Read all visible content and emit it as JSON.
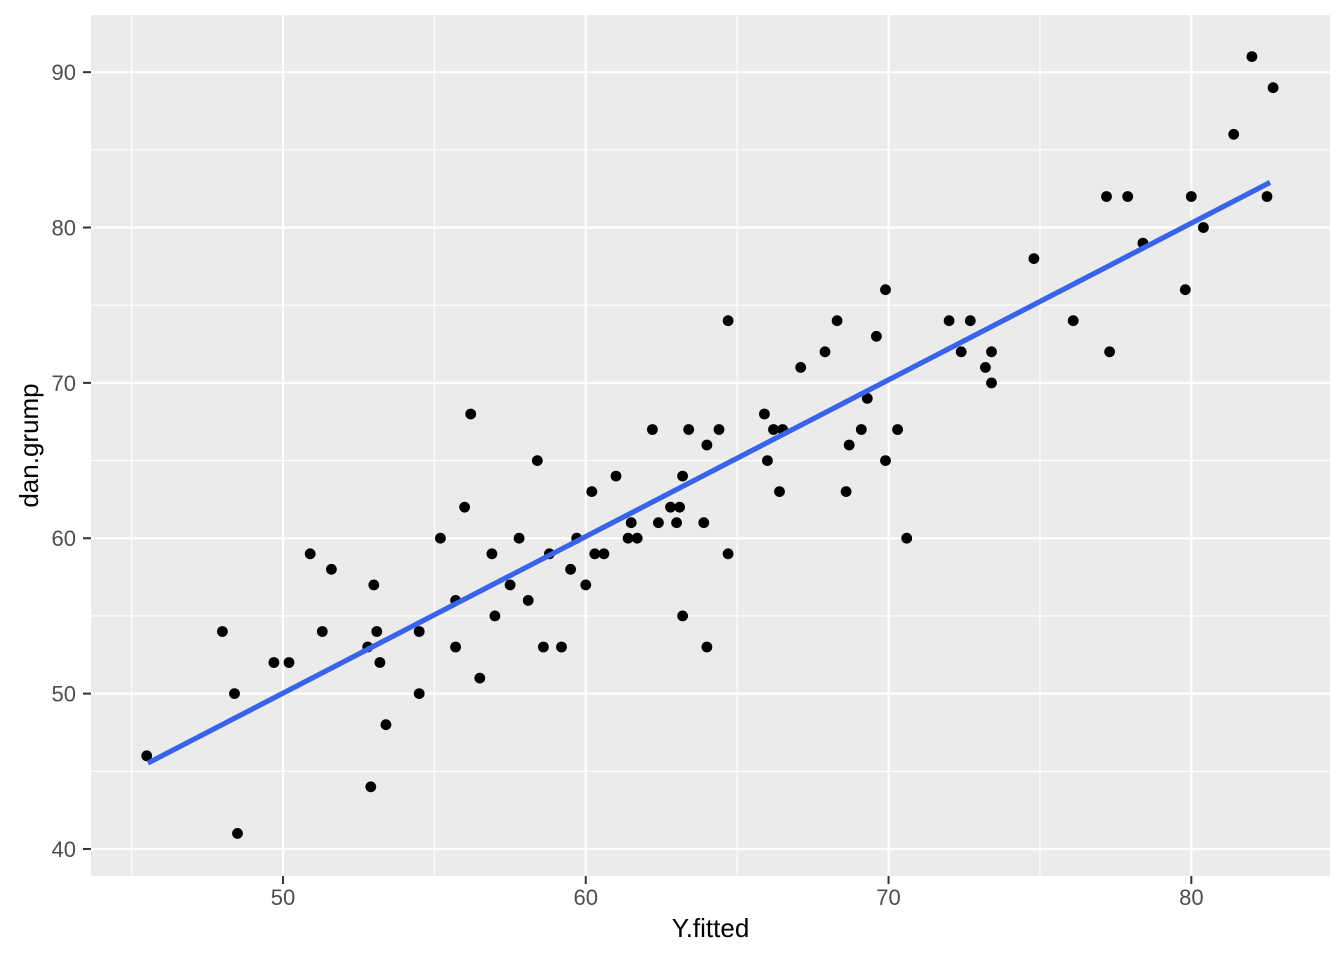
{
  "chart_data": {
    "type": "scatter",
    "title": "",
    "xlabel": "Y.fitted",
    "ylabel": "dan.grump",
    "x_ticks": [
      50,
      60,
      70,
      80
    ],
    "y_ticks": [
      40,
      50,
      60,
      70,
      80,
      90
    ],
    "x_minor": [
      45,
      55,
      65,
      75
    ],
    "y_minor": [
      45,
      55,
      65,
      75,
      85
    ],
    "xlim": [
      43.66,
      84.58
    ],
    "ylim": [
      38.26,
      93.68
    ],
    "grid": true,
    "legend": null,
    "points": [
      [
        45.5,
        46
      ],
      [
        48.0,
        54
      ],
      [
        48.4,
        50
      ],
      [
        48.5,
        41
      ],
      [
        49.7,
        52
      ],
      [
        50.2,
        52
      ],
      [
        50.9,
        59
      ],
      [
        51.3,
        54
      ],
      [
        51.6,
        58
      ],
      [
        52.8,
        53
      ],
      [
        52.9,
        44
      ],
      [
        53.0,
        57
      ],
      [
        53.1,
        54
      ],
      [
        53.2,
        52
      ],
      [
        53.4,
        48
      ],
      [
        54.5,
        54
      ],
      [
        54.5,
        50
      ],
      [
        55.2,
        60
      ],
      [
        55.7,
        56
      ],
      [
        55.7,
        53
      ],
      [
        56.0,
        62
      ],
      [
        56.2,
        68
      ],
      [
        56.5,
        51
      ],
      [
        56.9,
        59
      ],
      [
        57.0,
        55
      ],
      [
        57.5,
        57
      ],
      [
        57.8,
        60
      ],
      [
        58.1,
        56
      ],
      [
        58.4,
        65
      ],
      [
        58.6,
        53
      ],
      [
        58.8,
        59
      ],
      [
        59.2,
        53
      ],
      [
        59.5,
        58
      ],
      [
        59.7,
        60
      ],
      [
        60.0,
        57
      ],
      [
        60.2,
        63
      ],
      [
        60.3,
        59
      ],
      [
        60.6,
        59
      ],
      [
        61.0,
        64
      ],
      [
        61.4,
        60
      ],
      [
        61.5,
        61
      ],
      [
        61.7,
        60
      ],
      [
        62.2,
        67
      ],
      [
        62.4,
        61
      ],
      [
        62.8,
        62
      ],
      [
        63.0,
        61
      ],
      [
        63.1,
        62
      ],
      [
        63.2,
        64
      ],
      [
        63.2,
        55
      ],
      [
        63.4,
        67
      ],
      [
        63.9,
        61
      ],
      [
        64.0,
        66
      ],
      [
        64.0,
        53
      ],
      [
        64.4,
        67
      ],
      [
        64.7,
        74
      ],
      [
        64.7,
        59
      ],
      [
        65.9,
        68
      ],
      [
        66.0,
        65
      ],
      [
        66.2,
        67
      ],
      [
        66.5,
        67
      ],
      [
        66.4,
        63
      ],
      [
        67.1,
        71
      ],
      [
        67.9,
        72
      ],
      [
        68.3,
        74
      ],
      [
        68.6,
        63
      ],
      [
        68.7,
        66
      ],
      [
        69.1,
        67
      ],
      [
        69.3,
        69
      ],
      [
        69.6,
        73
      ],
      [
        69.9,
        76
      ],
      [
        69.9,
        65
      ],
      [
        70.3,
        67
      ],
      [
        70.6,
        60
      ],
      [
        72.0,
        74
      ],
      [
        72.7,
        74
      ],
      [
        72.4,
        72
      ],
      [
        73.2,
        71
      ],
      [
        73.4,
        72
      ],
      [
        73.4,
        70
      ],
      [
        74.8,
        78
      ],
      [
        76.1,
        74
      ],
      [
        77.2,
        82
      ],
      [
        77.3,
        72
      ],
      [
        77.9,
        82
      ],
      [
        78.4,
        79
      ],
      [
        79.8,
        76
      ],
      [
        80.0,
        82
      ],
      [
        80.4,
        80
      ],
      [
        81.4,
        86
      ],
      [
        82.0,
        91
      ],
      [
        82.5,
        82
      ],
      [
        82.7,
        89
      ]
    ],
    "regression_line": {
      "x1": 45.54,
      "y1": 45.53,
      "x2": 82.6,
      "y2": 82.9
    },
    "colors": {
      "panel_bg": "#EBEBEB",
      "grid_major": "#FFFFFF",
      "grid_minor": "#FFFFFF",
      "point": "#000000",
      "line": "#3A64E8",
      "tick_label": "#4D4D4D",
      "axis_title": "#000000",
      "tick_mark": "#333333",
      "page_bg": "#FFFFFF"
    }
  }
}
